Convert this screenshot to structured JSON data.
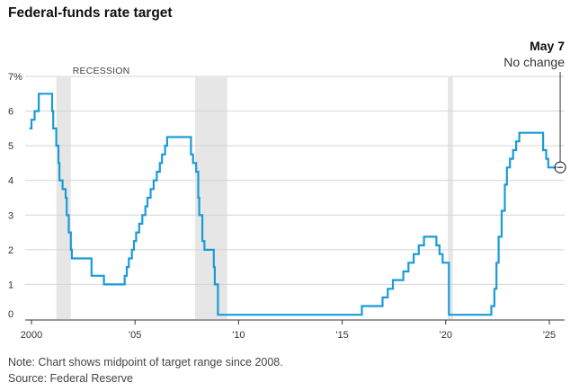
{
  "title": "Federal-funds rate target",
  "notes": {
    "note": "Note: Chart shows midpoint of target range since 2008.",
    "source": "Source: Federal Reserve"
  },
  "colors": {
    "line": "#1a9bd7",
    "recession": "#e6e6e6",
    "grid": "#d4d4d4",
    "axis": "#333333",
    "text": "#222222"
  },
  "chart_data": {
    "type": "line",
    "title": "Federal-funds rate target",
    "xlabel": "",
    "ylabel": "",
    "xlim": [
      1999.6,
      2025.5
    ],
    "ylim": [
      0,
      7.5
    ],
    "grid": true,
    "x_ticks": [
      2000,
      2005,
      2010,
      2015,
      2020,
      2025
    ],
    "x_tick_labels": [
      "2000",
      "'05",
      "'10",
      "'15",
      "'20",
      "'25"
    ],
    "y_ticks": [
      0,
      1,
      2,
      3,
      4,
      5,
      6,
      7
    ],
    "y_tick_labels": [
      "0",
      "1",
      "2",
      "3",
      "4",
      "5",
      "6",
      "7%"
    ],
    "recession_label": "RECESSION",
    "recessions": [
      [
        2001.2,
        2001.9
      ],
      [
        2007.9,
        2009.45
      ],
      [
        2020.1,
        2020.35
      ]
    ],
    "series": [
      {
        "step": true,
        "points": [
          [
            1999.9,
            5.5
          ],
          [
            2000.0,
            5.75
          ],
          [
            2000.15,
            6.0
          ],
          [
            2000.35,
            6.5
          ],
          [
            2001.0,
            6.0
          ],
          [
            2001.05,
            5.5
          ],
          [
            2001.2,
            5.0
          ],
          [
            2001.3,
            4.5
          ],
          [
            2001.35,
            4.0
          ],
          [
            2001.5,
            3.75
          ],
          [
            2001.65,
            3.5
          ],
          [
            2001.7,
            3.0
          ],
          [
            2001.8,
            2.5
          ],
          [
            2001.9,
            2.0
          ],
          [
            2001.95,
            1.75
          ],
          [
            2002.9,
            1.25
          ],
          [
            2003.5,
            1.0
          ],
          [
            2004.5,
            1.25
          ],
          [
            2004.6,
            1.5
          ],
          [
            2004.7,
            1.75
          ],
          [
            2004.85,
            2.0
          ],
          [
            2004.95,
            2.25
          ],
          [
            2005.05,
            2.5
          ],
          [
            2005.2,
            2.75
          ],
          [
            2005.35,
            3.0
          ],
          [
            2005.5,
            3.25
          ],
          [
            2005.6,
            3.5
          ],
          [
            2005.75,
            3.75
          ],
          [
            2005.9,
            4.0
          ],
          [
            2006.05,
            4.25
          ],
          [
            2006.2,
            4.5
          ],
          [
            2006.3,
            4.75
          ],
          [
            2006.45,
            5.0
          ],
          [
            2006.55,
            5.25
          ],
          [
            2007.7,
            4.75
          ],
          [
            2007.8,
            4.5
          ],
          [
            2007.95,
            4.25
          ],
          [
            2008.05,
            3.5
          ],
          [
            2008.1,
            3.0
          ],
          [
            2008.25,
            2.25
          ],
          [
            2008.35,
            2.0
          ],
          [
            2008.8,
            1.5
          ],
          [
            2008.85,
            1.0
          ],
          [
            2009.0,
            0.125
          ],
          [
            2015.95,
            0.375
          ],
          [
            2016.95,
            0.625
          ],
          [
            2017.2,
            0.875
          ],
          [
            2017.45,
            1.125
          ],
          [
            2017.95,
            1.375
          ],
          [
            2018.2,
            1.625
          ],
          [
            2018.45,
            1.875
          ],
          [
            2018.7,
            2.125
          ],
          [
            2018.95,
            2.375
          ],
          [
            2019.55,
            2.125
          ],
          [
            2019.7,
            1.875
          ],
          [
            2019.85,
            1.625
          ],
          [
            2020.15,
            0.125
          ],
          [
            2022.2,
            0.375
          ],
          [
            2022.35,
            0.875
          ],
          [
            2022.45,
            1.625
          ],
          [
            2022.55,
            2.375
          ],
          [
            2022.7,
            3.125
          ],
          [
            2022.85,
            3.875
          ],
          [
            2022.95,
            4.375
          ],
          [
            2023.1,
            4.625
          ],
          [
            2023.25,
            4.875
          ],
          [
            2023.4,
            5.125
          ],
          [
            2023.55,
            5.375
          ],
          [
            2024.7,
            4.875
          ],
          [
            2024.85,
            4.625
          ],
          [
            2024.95,
            4.375
          ],
          [
            2025.35,
            4.375
          ]
        ]
      }
    ],
    "annotation": {
      "title": "May 7",
      "subtitle": "No change",
      "x": 2025.35,
      "y": 4.375
    }
  }
}
